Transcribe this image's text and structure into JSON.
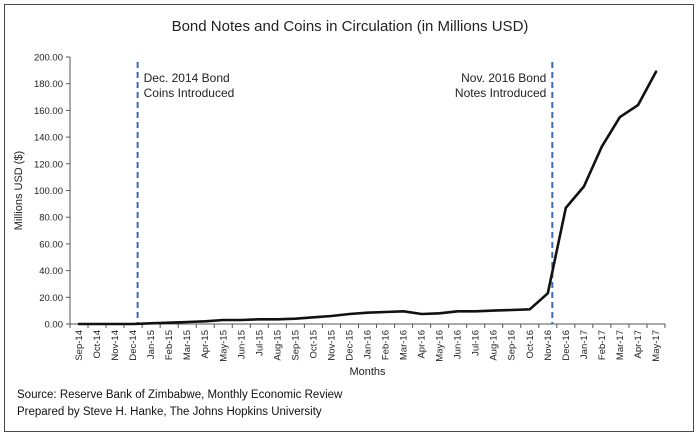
{
  "chart_data": {
    "type": "line",
    "title": "Bond Notes and Coins in Circulation (in Millions USD)",
    "xlabel": "Months",
    "ylabel": "Millions USD ($)",
    "ylim": [
      0,
      200
    ],
    "yticks": [
      "0.00",
      "20.00",
      "40.00",
      "60.00",
      "80.00",
      "100.00",
      "120.00",
      "140.00",
      "160.00",
      "180.00",
      "200.00"
    ],
    "categories": [
      "Sep-14",
      "Oct-14",
      "Nov-14",
      "Dec-14",
      "Jan-15",
      "Feb-15",
      "Mar-15",
      "Apr-15",
      "May-15",
      "Jun-15",
      "Jul-15",
      "Aug-15",
      "Sep-15",
      "Oct-15",
      "Nov-15",
      "Dec-15",
      "Jan-16",
      "Feb-16",
      "Mar-16",
      "Apr-16",
      "May-16",
      "Jun-16",
      "Jul-16",
      "Aug-16",
      "Sep-16",
      "Oct-16",
      "Nov-16",
      "Dec-16",
      "Jan-17",
      "Feb-17",
      "Mar-17",
      "Apr-17",
      "May-17"
    ],
    "series": [
      {
        "name": "Bond Notes and Coins",
        "values": [
          0,
          0,
          0,
          0,
          0.5,
          1,
          1.5,
          2,
          3,
          3,
          3.5,
          3.5,
          4,
          5,
          6,
          7.5,
          8.5,
          9,
          9.5,
          7.5,
          8,
          9.5,
          9.5,
          10,
          10.5,
          11,
          23,
          87,
          103,
          133,
          155,
          164,
          189
        ]
      }
    ],
    "markers": [
      {
        "category": "Dec-14",
        "lines": [
          "Dec. 2014 Bond",
          "Coins Introduced"
        ],
        "color": "#3b6bb5"
      },
      {
        "category": "Nov-16",
        "lines": [
          "Nov. 2016 Bond",
          "Notes Introduced"
        ],
        "color": "#3b6bb5"
      }
    ],
    "line_color": "#111111"
  },
  "source": {
    "line1": "Source: Reserve Bank of Zimbabwe, Monthly Economic Review",
    "line2": "Prepared by Steve H. Hanke, The Johns Hopkins University"
  }
}
